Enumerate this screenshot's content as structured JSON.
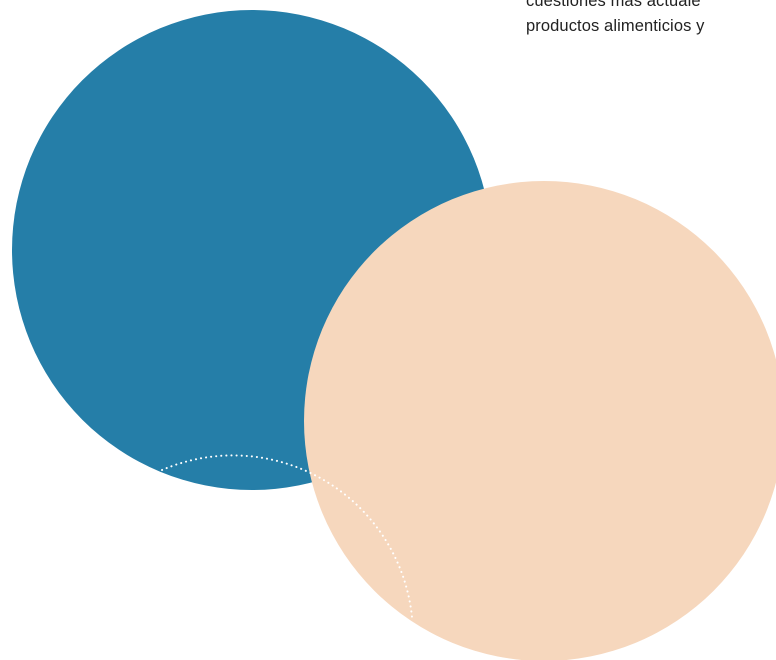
{
  "text": {
    "lines": [
      "cuestiones más actuale",
      "productos alimenticios y"
    ]
  },
  "colors": {
    "blue_circle": "#257ea8",
    "peach_circle": "#f6d7bd",
    "dotted_outline": "#ffffff",
    "text": "#222222",
    "background": "#ffffff"
  }
}
